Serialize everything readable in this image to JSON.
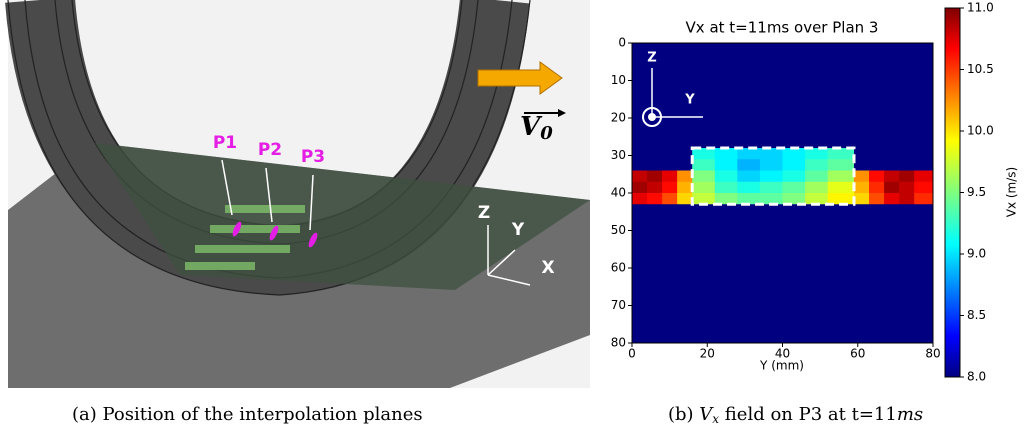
{
  "figure_a": {
    "planes": [
      "P1",
      "P2",
      "P3"
    ],
    "axes": [
      "Z",
      "Y",
      "X"
    ],
    "velocity": {
      "symbol": "V",
      "subscript": "0"
    }
  },
  "caption_a": "(a) Position of the interpolation planes",
  "caption_b": {
    "prefix": "(b) ",
    "symbol": "V",
    "subscript": "x",
    "text": " field on P3 at t=11",
    "unit": "ms"
  },
  "chart_data": {
    "type": "heatmap",
    "title": "Vx at t=11ms over Plan 3",
    "x_label": "Y (mm)",
    "colorbar_label": "Vx (m/s)",
    "colormap": "jet",
    "inset_axes": [
      "Z",
      "Y"
    ],
    "x_edges": [
      0,
      4,
      8,
      12,
      16,
      22,
      28,
      34,
      40,
      46,
      52,
      59,
      63,
      67,
      71,
      75,
      80
    ],
    "y_edges": [
      0,
      28,
      31,
      34,
      37,
      40,
      43,
      80
    ],
    "values": [
      [
        8.0,
        8.0,
        8.0,
        8.0,
        8.0,
        8.0,
        8.0,
        8.0,
        8.0,
        8.0,
        8.0,
        8.0,
        8.0,
        8.0,
        8.0,
        8.0
      ],
      [
        8.0,
        8.0,
        8.0,
        8.0,
        9.2,
        9.1,
        9.0,
        9.0,
        9.1,
        9.2,
        9.3,
        8.0,
        8.0,
        8.0,
        8.0,
        8.0
      ],
      [
        8.0,
        8.0,
        8.0,
        8.0,
        9.3,
        9.1,
        8.9,
        9.0,
        9.1,
        9.3,
        9.4,
        8.0,
        8.0,
        8.0,
        8.0,
        8.0
      ],
      [
        10.8,
        10.9,
        10.7,
        10.2,
        9.5,
        9.2,
        9.0,
        9.1,
        9.2,
        9.4,
        9.6,
        10.2,
        10.6,
        10.8,
        10.9,
        10.7
      ],
      [
        10.9,
        10.8,
        10.6,
        10.1,
        9.6,
        9.3,
        9.2,
        9.3,
        9.4,
        9.6,
        9.8,
        10.1,
        10.5,
        10.9,
        10.8,
        10.6
      ],
      [
        10.7,
        10.6,
        10.4,
        10.0,
        9.7,
        9.5,
        9.4,
        9.4,
        9.5,
        9.7,
        9.9,
        10.0,
        10.4,
        10.7,
        10.8,
        10.5
      ],
      [
        8.0,
        8.0,
        8.0,
        8.0,
        8.0,
        8.0,
        8.0,
        8.0,
        8.0,
        8.0,
        8.0,
        8.0,
        8.0,
        8.0,
        8.0,
        8.0
      ]
    ],
    "highlight_box": {
      "x": [
        16,
        59
      ],
      "y": [
        28,
        43
      ]
    },
    "xlim": [
      0,
      80
    ],
    "xticks": [
      0,
      20,
      40,
      60,
      80
    ],
    "ylim": [
      0,
      80
    ],
    "y_inverted": true,
    "yticks": [
      0,
      10,
      20,
      30,
      40,
      50,
      60,
      70,
      80
    ],
    "clim": [
      8,
      11
    ],
    "cticks": [
      {
        "value": 8,
        "label": "8.0"
      },
      8.5,
      {
        "value": 9,
        "label": "9.0"
      },
      9.5,
      {
        "value": 10,
        "label": "10.0"
      },
      10.5,
      {
        "value": 11,
        "label": "11.0"
      }
    ]
  }
}
